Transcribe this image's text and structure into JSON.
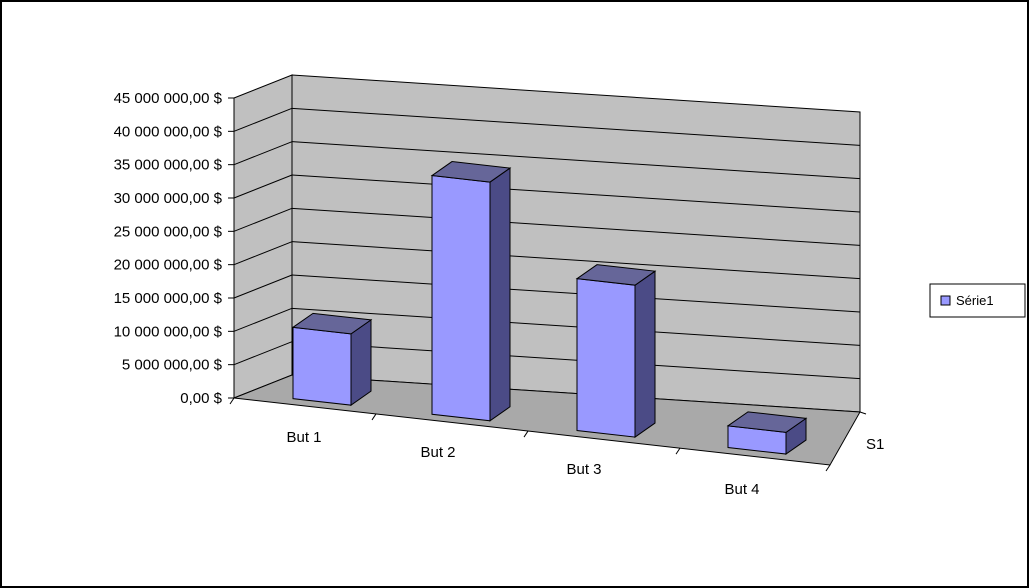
{
  "chart_data": {
    "type": "bar",
    "categories": [
      "But 1",
      "But 2",
      "But 3",
      "But 4"
    ],
    "series": [
      {
        "name": "Série1",
        "values": [
          11500000,
          38500000,
          24500000,
          3500000
        ]
      }
    ],
    "depth_categories": [
      "S1"
    ],
    "y_tick_labels": [
      "45 000 000,00 $",
      "40 000 000,00 $",
      "35 000 000,00 $",
      "30 000 000,00 $",
      "25 000 000,00 $",
      "20 000 000,00 $",
      "15 000 000,00 $",
      "10 000 000,00 $",
      "5 000 000,00 $",
      "0,00 $"
    ],
    "ylim": [
      0,
      45000000
    ],
    "y_step": 5000000,
    "title": "",
    "xlabel": "",
    "ylabel": "",
    "grid": true,
    "legend": "right",
    "colors": {
      "bar_front": "#9999ff",
      "bar_top": "#666699",
      "bar_side": "#4b4b86",
      "wall": "#c0c0c0",
      "floor": "#a9a9a9",
      "gridline": "#000000"
    }
  }
}
